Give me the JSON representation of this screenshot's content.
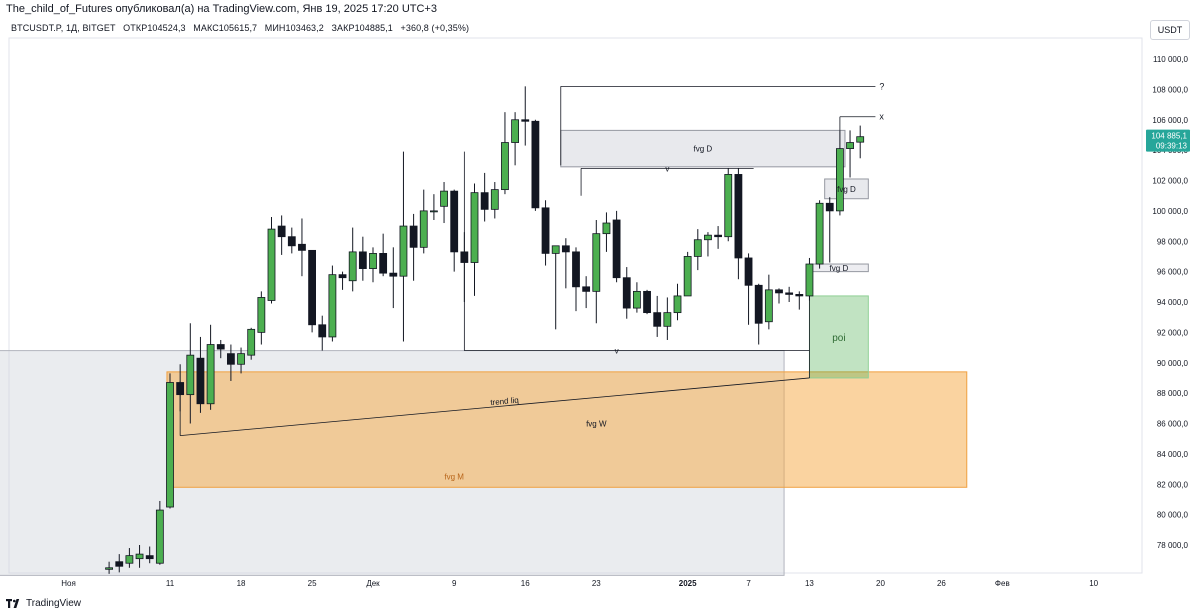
{
  "header": {
    "publish_line": "The_child_of_Futures опубликовал(а) на TradingView.com, Янв 19, 2025 17:20 UTC+3"
  },
  "legend": {
    "symbol": "BTCUSDT.P, 1Д, BITGET",
    "open": "ОТКР104524,3",
    "high": "МАКС105615,7",
    "low": "МИН103463,2",
    "close": "ЗАКР104885,1",
    "change": "+360,8 (+0,35%)"
  },
  "currency_button": "USDT",
  "price_badge": {
    "price": "104 885,1",
    "countdown": "09:39:13",
    "color": "#26a69a"
  },
  "footer": {
    "brand": "TradingView"
  },
  "colors": {
    "up": "#4caf50",
    "down": "#131722",
    "fvg_gray": "#b2b5be",
    "fvg_orange": "#f5a742",
    "poi_green": "#4caf50"
  },
  "chart_data": {
    "type": "candlestick",
    "ylim": [
      76000,
      111500
    ],
    "y_ticks": [
      {
        "v": 110000,
        "label": "110 000,0"
      },
      {
        "v": 108000,
        "label": "108 000,0"
      },
      {
        "v": 106000,
        "label": "106 000,0"
      },
      {
        "v": 104000,
        "label": "104 000,0"
      },
      {
        "v": 102000,
        "label": "102 000,0"
      },
      {
        "v": 100000,
        "label": "100 000,0"
      },
      {
        "v": 98000,
        "label": "98 000,0"
      },
      {
        "v": 96000,
        "label": "96 000,0"
      },
      {
        "v": 94000,
        "label": "94 000,0"
      },
      {
        "v": 92000,
        "label": "92 000,0"
      },
      {
        "v": 90000,
        "label": "90 000,0"
      },
      {
        "v": 88000,
        "label": "88 000,0"
      },
      {
        "v": 86000,
        "label": "86 000,0"
      },
      {
        "v": 84000,
        "label": "84 000,0"
      },
      {
        "v": 82000,
        "label": "82 000,0"
      },
      {
        "v": 80000,
        "label": "80 000,0"
      },
      {
        "v": 78000,
        "label": "78 000,0"
      }
    ],
    "x_ticks": [
      {
        "i": -10,
        "label": "Ноя"
      },
      {
        "i": 0,
        "label": "11"
      },
      {
        "i": 7,
        "label": "18"
      },
      {
        "i": 14,
        "label": "25"
      },
      {
        "i": 20,
        "label": "Дек"
      },
      {
        "i": 28,
        "label": "9"
      },
      {
        "i": 35,
        "label": "16"
      },
      {
        "i": 42,
        "label": "23"
      },
      {
        "i": 51,
        "label": "2025"
      },
      {
        "i": 57,
        "label": "7"
      },
      {
        "i": 63,
        "label": "13"
      },
      {
        "i": 70,
        "label": "20"
      },
      {
        "i": 76,
        "label": "26"
      },
      {
        "i": 82,
        "label": "Фев"
      },
      {
        "i": 91,
        "label": "10"
      }
    ],
    "candles": [
      {
        "o": 76400,
        "h": 76900,
        "l": 76100,
        "c": 76500
      },
      {
        "o": 76900,
        "h": 77400,
        "l": 76200,
        "c": 76600
      },
      {
        "o": 76800,
        "h": 77800,
        "l": 76500,
        "c": 77300
      },
      {
        "o": 77100,
        "h": 78000,
        "l": 76500,
        "c": 77400
      },
      {
        "o": 77300,
        "h": 77900,
        "l": 76800,
        "c": 77100
      },
      {
        "o": 76800,
        "h": 80900,
        "l": 76700,
        "c": 80300
      },
      {
        "o": 80500,
        "h": 89300,
        "l": 80400,
        "c": 88700
      },
      {
        "o": 88700,
        "h": 89900,
        "l": 86800,
        "c": 87900
      },
      {
        "o": 87900,
        "h": 92600,
        "l": 86000,
        "c": 90500
      },
      {
        "o": 90300,
        "h": 91700,
        "l": 86700,
        "c": 87300
      },
      {
        "o": 87300,
        "h": 92500,
        "l": 86900,
        "c": 91200
      },
      {
        "o": 91200,
        "h": 91500,
        "l": 90300,
        "c": 90900
      },
      {
        "o": 90600,
        "h": 91200,
        "l": 88800,
        "c": 89900
      },
      {
        "o": 89900,
        "h": 91000,
        "l": 89300,
        "c": 90600
      },
      {
        "o": 90500,
        "h": 92300,
        "l": 90200,
        "c": 92200
      },
      {
        "o": 92000,
        "h": 94700,
        "l": 91200,
        "c": 94300
      },
      {
        "o": 94100,
        "h": 99600,
        "l": 93900,
        "c": 98800
      },
      {
        "o": 99000,
        "h": 99700,
        "l": 97100,
        "c": 98300
      },
      {
        "o": 98300,
        "h": 98900,
        "l": 97200,
        "c": 97700
      },
      {
        "o": 97800,
        "h": 99500,
        "l": 95700,
        "c": 97400
      },
      {
        "o": 97400,
        "h": 97400,
        "l": 92000,
        "c": 92500
      },
      {
        "o": 92500,
        "h": 93100,
        "l": 90800,
        "c": 91700
      },
      {
        "o": 91700,
        "h": 96400,
        "l": 91400,
        "c": 95800
      },
      {
        "o": 95800,
        "h": 96000,
        "l": 94800,
        "c": 95600
      },
      {
        "o": 95400,
        "h": 98900,
        "l": 94700,
        "c": 97300
      },
      {
        "o": 97300,
        "h": 98300,
        "l": 95400,
        "c": 96200
      },
      {
        "o": 96200,
        "h": 97600,
        "l": 95300,
        "c": 97200
      },
      {
        "o": 97200,
        "h": 98500,
        "l": 95700,
        "c": 95900
      },
      {
        "o": 95900,
        "h": 97600,
        "l": 93600,
        "c": 95700
      },
      {
        "o": 95700,
        "h": 103900,
        "l": 91400,
        "c": 99000
      },
      {
        "o": 99000,
        "h": 99800,
        "l": 95400,
        "c": 97600
      },
      {
        "o": 97600,
        "h": 101400,
        "l": 97200,
        "c": 100000
      },
      {
        "o": 100000,
        "h": 101100,
        "l": 99400,
        "c": 100000
      },
      {
        "o": 100300,
        "h": 101900,
        "l": 99200,
        "c": 101300
      },
      {
        "o": 101300,
        "h": 101400,
        "l": 96000,
        "c": 97300
      },
      {
        "o": 97300,
        "h": 98600,
        "l": 94000,
        "c": 96600
      },
      {
        "o": 96600,
        "h": 101800,
        "l": 94400,
        "c": 101200
      },
      {
        "o": 101200,
        "h": 102500,
        "l": 99300,
        "c": 100100
      },
      {
        "o": 100100,
        "h": 101900,
        "l": 99500,
        "c": 101400
      },
      {
        "o": 101400,
        "h": 106500,
        "l": 101100,
        "c": 104500
      },
      {
        "o": 104500,
        "h": 106500,
        "l": 103000,
        "c": 106000
      },
      {
        "o": 106000,
        "h": 108200,
        "l": 104300,
        "c": 105900
      },
      {
        "o": 105900,
        "h": 106000,
        "l": 100000,
        "c": 100200
      },
      {
        "o": 100200,
        "h": 100700,
        "l": 96400,
        "c": 97200
      },
      {
        "o": 97200,
        "h": 97600,
        "l": 92200,
        "c": 97700
      },
      {
        "o": 97700,
        "h": 98200,
        "l": 94900,
        "c": 97300
      },
      {
        "o": 97300,
        "h": 97600,
        "l": 93400,
        "c": 95000
      },
      {
        "o": 95000,
        "h": 95700,
        "l": 93600,
        "c": 94700
      },
      {
        "o": 94700,
        "h": 99400,
        "l": 92600,
        "c": 98500
      },
      {
        "o": 98500,
        "h": 99900,
        "l": 97300,
        "c": 99200
      },
      {
        "o": 99400,
        "h": 100000,
        "l": 95300,
        "c": 95600
      },
      {
        "o": 95600,
        "h": 96300,
        "l": 92900,
        "c": 93600
      },
      {
        "o": 93600,
        "h": 95300,
        "l": 93300,
        "c": 94700
      },
      {
        "o": 94700,
        "h": 94800,
        "l": 93200,
        "c": 93300
      },
      {
        "o": 93300,
        "h": 94400,
        "l": 91700,
        "c": 92400
      },
      {
        "o": 92400,
        "h": 94300,
        "l": 91500,
        "c": 93300
      },
      {
        "o": 93300,
        "h": 95200,
        "l": 92800,
        "c": 94400
      },
      {
        "o": 94400,
        "h": 97300,
        "l": 94400,
        "c": 97000
      },
      {
        "o": 97000,
        "h": 98800,
        "l": 96100,
        "c": 98100
      },
      {
        "o": 98100,
        "h": 98600,
        "l": 97000,
        "c": 98400
      },
      {
        "o": 98400,
        "h": 99000,
        "l": 97500,
        "c": 98300
      },
      {
        "o": 98300,
        "h": 102800,
        "l": 98000,
        "c": 102400
      },
      {
        "o": 102400,
        "h": 102800,
        "l": 95500,
        "c": 96900
      },
      {
        "o": 96900,
        "h": 97200,
        "l": 92500,
        "c": 95100
      },
      {
        "o": 95100,
        "h": 95200,
        "l": 91200,
        "c": 92600
      },
      {
        "o": 92700,
        "h": 95800,
        "l": 92200,
        "c": 94800
      },
      {
        "o": 94800,
        "h": 94900,
        "l": 93900,
        "c": 94600
      },
      {
        "o": 94600,
        "h": 95000,
        "l": 94000,
        "c": 94500
      },
      {
        "o": 94500,
        "h": 94700,
        "l": 93500,
        "c": 94400
      },
      {
        "o": 94400,
        "h": 96900,
        "l": 94100,
        "c": 96500
      },
      {
        "o": 96500,
        "h": 100700,
        "l": 96200,
        "c": 100500
      },
      {
        "o": 100500,
        "h": 100900,
        "l": 96600,
        "c": 100000
      },
      {
        "o": 100000,
        "h": 105300,
        "l": 99700,
        "c": 104100
      },
      {
        "o": 104100,
        "h": 105300,
        "l": 102200,
        "c": 104500
      },
      {
        "o": 104524.3,
        "h": 105615.7,
        "l": 103463.2,
        "c": 104885.1
      }
    ],
    "annotations": {
      "fvg_D_1": "fvg D",
      "fvg_D_2": "fvg D",
      "fvg_D_3": "fvg D",
      "fvg_W": "fvg W",
      "fvg_M": "fvg M",
      "poi": "poi",
      "trend_liq": "trend liq",
      "q_mark": "?",
      "x_mark": "x",
      "v_mark_1": "v",
      "v_mark_2": "v"
    },
    "zones": {
      "fvg_M": {
        "i0": -18,
        "i1": 60.5,
        "p0": 76000,
        "p1": 90800
      },
      "fvg_W": {
        "i0": -0.3,
        "i1": 78.5,
        "p0": 81800,
        "p1": 89400
      },
      "poi": {
        "i0": 63,
        "i1": 68.8,
        "p0": 89000,
        "p1": 94400
      },
      "fvg_D_1": {
        "i0": 38.5,
        "i1": 66.5,
        "p0": 102900,
        "p1": 105300
      },
      "fvg_D_2": {
        "i0": 64.5,
        "i1": 68.8,
        "p0": 100800,
        "p1": 102100
      },
      "fvg_D_3": {
        "i0": 63,
        "i1": 68.8,
        "p0": 96000,
        "p1": 96500
      }
    },
    "lines": {
      "top_high": {
        "i0": 38.5,
        "i1": 69.5,
        "p": 108200
      },
      "high_dec": {
        "i0": 40.5,
        "i1": 57.5,
        "p": 102800
      },
      "low_dec": {
        "i0": 29,
        "i1": 63,
        "p": 90800
      },
      "fvg_top_x": {
        "i0": 66,
        "i1": 69.5,
        "p": 106200
      },
      "trend": {
        "i0": 1,
        "p0": 85200,
        "i1": 63,
        "p1": 89000
      }
    }
  }
}
